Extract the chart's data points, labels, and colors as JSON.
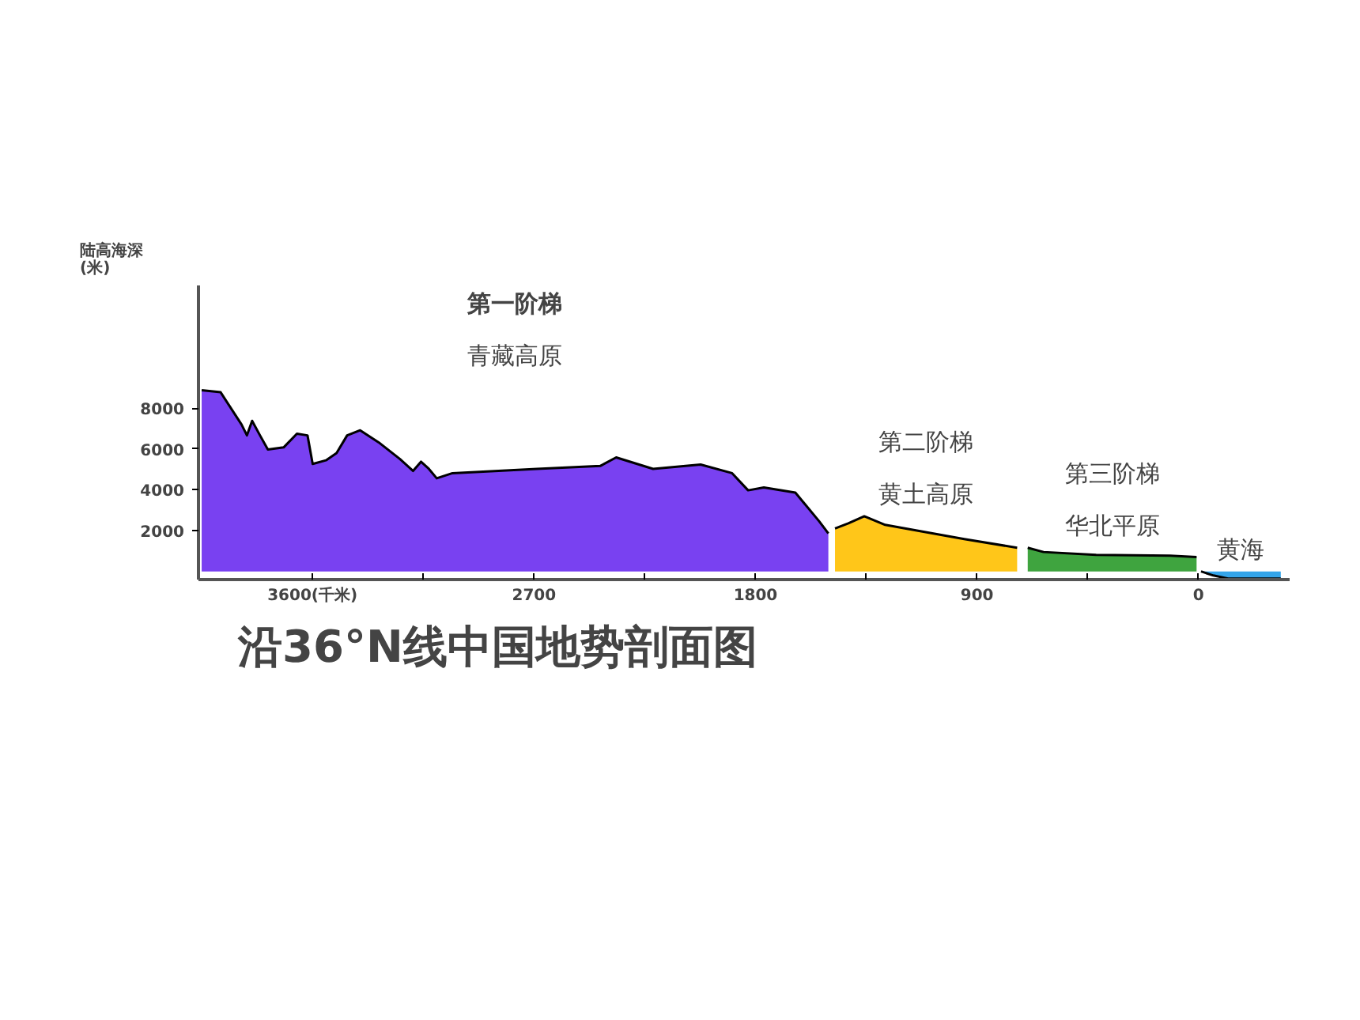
{
  "chart_data": {
    "type": "area",
    "title": "沿36°N线中国地势剖面图",
    "ylabel": "陆高海深\n(米)",
    "xlim": [
      4063,
      -370
    ],
    "ylim": [
      -400,
      14000
    ],
    "xticks": [
      {
        "value": 3600,
        "label": "3600(千米)"
      },
      {
        "value": 3150,
        "label": null
      },
      2700,
      {
        "value": 2250,
        "label": null
      },
      1800,
      {
        "value": 1350,
        "label": null
      },
      900,
      {
        "value": 450,
        "label": null
      },
      0
    ],
    "yticks": [
      2000,
      4000,
      6000,
      8000
    ],
    "grid": false,
    "series": [
      {
        "color": "#6a2cf0",
        "x": [
          4050,
          3973,
          3888,
          3866,
          3845,
          3813,
          3781,
          3717,
          3663,
          3620,
          3599,
          3545,
          3502,
          3459,
          3406,
          3331,
          3245,
          3191,
          3159,
          3127,
          3095,
          3031,
          2688,
          2431,
          2366,
          2216,
          2023,
          1895,
          1830,
          1766,
          1638,
          1541,
          1504
        ],
        "values": [
          8870,
          8770,
          7190,
          6660,
          7370,
          6660,
          5970,
          6070,
          6740,
          6660,
          5260,
          5440,
          5790,
          6660,
          6910,
          6320,
          5510,
          4920,
          5370,
          5020,
          4560,
          4810,
          5020,
          5160,
          5580,
          5020,
          5230,
          4810,
          3970,
          4110,
          3860,
          2450,
          1860
        ]
      },
      {
        "color": "#ffc000",
        "x": [
          1477,
          1423,
          1358,
          1273,
          1144,
          952,
          737
        ],
        "values": [
          2100,
          2350,
          2700,
          2280,
          2000,
          1580,
          1160
        ]
      },
      {
        "color": "#2a9a2a",
        "x": [
          694,
          630,
          416,
          116,
          8
        ],
        "values": [
          1160,
          950,
          810,
          770,
          700
        ]
      },
      {
        "color": "#1e9be8",
        "x": [
          -10,
          -60,
          -120,
          -334
        ],
        "values": [
          0,
          -200,
          -350,
          -350
        ]
      }
    ],
    "annotations": [
      "第一阶梯",
      "青藏高原",
      "第二阶梯",
      "黄土高原",
      "第三阶梯",
      "华北平原",
      "黄海"
    ]
  }
}
